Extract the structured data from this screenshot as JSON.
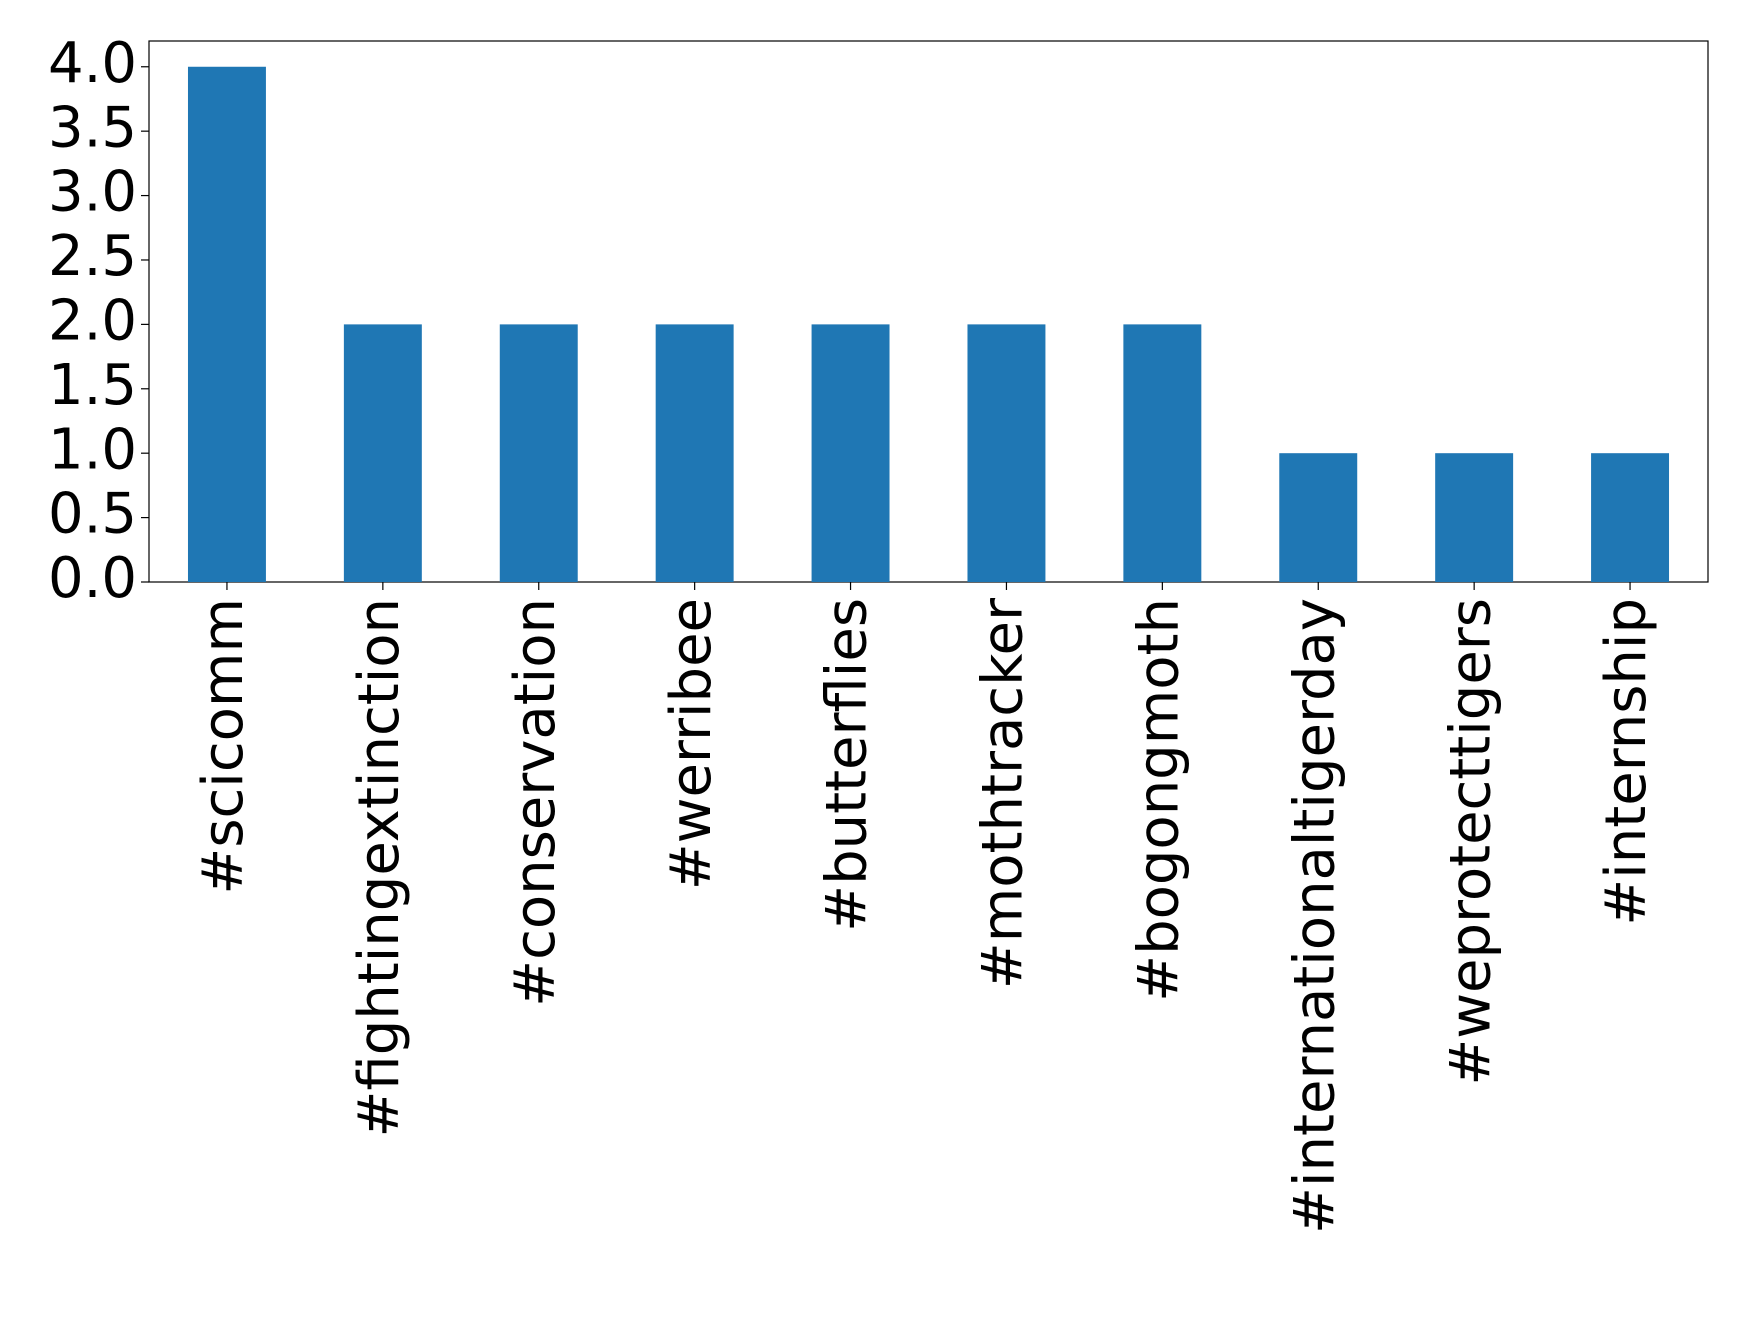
{
  "chart_data": {
    "type": "bar",
    "categories": [
      "#scicomm",
      "#fightingextinction",
      "#conservation",
      "#werribee",
      "#butterflies",
      "#mothtracker",
      "#bogongmoth",
      "#internationaltigerday",
      "#weprotecttigers",
      "#internship"
    ],
    "values": [
      4,
      2,
      2,
      2,
      2,
      2,
      2,
      1,
      1,
      1
    ],
    "color": "#1f77b4",
    "ylim": [
      0,
      4.2
    ],
    "yticks": [
      {
        "value": 0,
        "label": "0.0"
      },
      0.5,
      {
        "value": 1,
        "label": "1.0"
      },
      1.5,
      {
        "value": 2,
        "label": "2.0"
      },
      2.5,
      {
        "value": 3,
        "label": "3.0"
      },
      3.5,
      {
        "value": 4,
        "label": "4.0"
      }
    ],
    "grid": false
  }
}
